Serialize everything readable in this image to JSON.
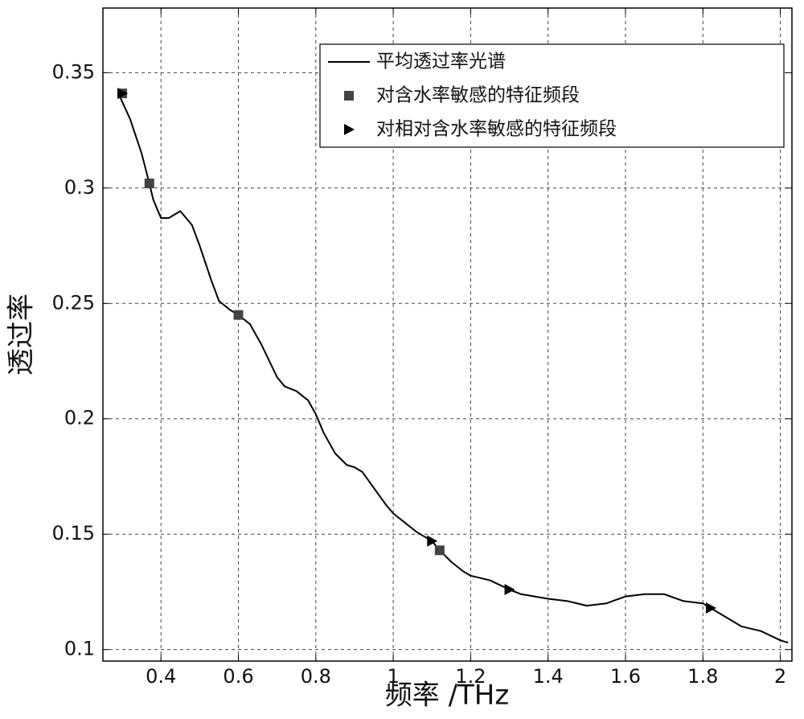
{
  "chart_data": {
    "type": "line",
    "x_label": "频率 /THz",
    "y_label": "透过率",
    "xlim": [
      0.25,
      2.03
    ],
    "ylim": [
      0.095,
      0.378
    ],
    "xticks": [
      0.4,
      0.6,
      0.8,
      1,
      1.2,
      1.4,
      1.6,
      1.8,
      2
    ],
    "yticks": [
      0.1,
      0.15,
      0.2,
      0.25,
      0.3,
      0.35
    ],
    "grid": true,
    "legend": "upper right",
    "series": [
      {
        "name": "平均透过率光谱",
        "color": "#000000",
        "marker": "none",
        "x": [
          0.29,
          0.32,
          0.35,
          0.37,
          0.38,
          0.4,
          0.42,
          0.45,
          0.48,
          0.5,
          0.53,
          0.55,
          0.58,
          0.6,
          0.63,
          0.66,
          0.68,
          0.7,
          0.72,
          0.75,
          0.78,
          0.8,
          0.82,
          0.85,
          0.88,
          0.9,
          0.92,
          0.95,
          0.98,
          1.0,
          1.03,
          1.06,
          1.1,
          1.12,
          1.15,
          1.18,
          1.2,
          1.25,
          1.3,
          1.33,
          1.4,
          1.45,
          1.5,
          1.55,
          1.6,
          1.65,
          1.7,
          1.75,
          1.8,
          1.82,
          1.85,
          1.9,
          1.95,
          2.0,
          2.02
        ],
        "values": [
          0.341,
          0.33,
          0.315,
          0.302,
          0.295,
          0.287,
          0.287,
          0.29,
          0.284,
          0.275,
          0.26,
          0.251,
          0.247,
          0.245,
          0.241,
          0.232,
          0.225,
          0.218,
          0.214,
          0.212,
          0.208,
          0.202,
          0.194,
          0.185,
          0.18,
          0.179,
          0.177,
          0.17,
          0.163,
          0.159,
          0.155,
          0.151,
          0.147,
          0.143,
          0.138,
          0.134,
          0.132,
          0.13,
          0.126,
          0.124,
          0.122,
          0.121,
          0.119,
          0.12,
          0.123,
          0.124,
          0.124,
          0.121,
          0.12,
          0.118,
          0.115,
          0.11,
          0.108,
          0.104,
          0.103
        ]
      },
      {
        "name": "对含水率敏感的特征频段",
        "color": "#444444",
        "marker": "square",
        "x": [
          0.3,
          0.37,
          0.6,
          1.12
        ],
        "values": [
          0.341,
          0.302,
          0.245,
          0.143
        ]
      },
      {
        "name": "对相对含水率敏感的特征频段",
        "color": "#000000",
        "marker": "triangle",
        "x": [
          0.3,
          1.1,
          1.3,
          1.82
        ],
        "values": [
          0.341,
          0.147,
          0.126,
          0.118
        ]
      }
    ]
  }
}
